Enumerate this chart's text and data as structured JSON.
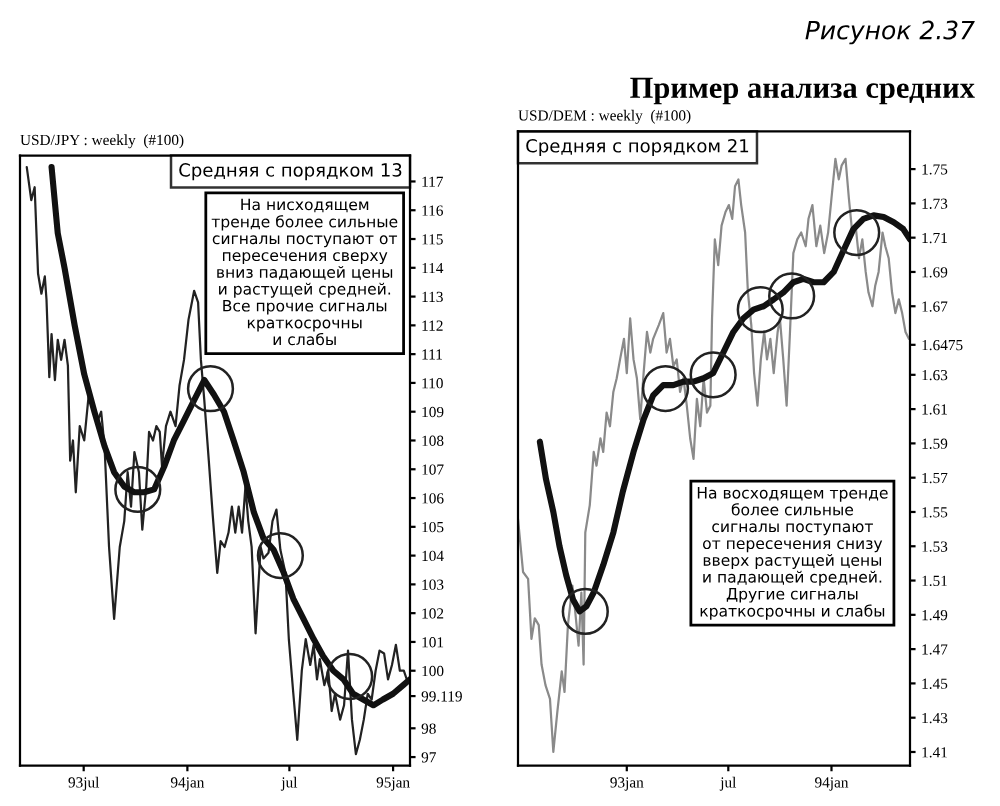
{
  "chart_data": [
    {
      "type": "line",
      "annotations": [
        "USD/JPY : weekly  (#100)",
        "На нисходящем\nтренде более сильные\nсигналы поступают от\nпересечения сверху\nвниз падающей цены\nи растущей средней.\nВсе прочие сигналы\nкраткосрочны\nи слабы"
      ],
      "xlim": [
        "1993-03-10",
        "1995-01-31"
      ],
      "xticks": [
        {
          "value": "1993-07-01",
          "label": "93jul"
        },
        {
          "value": "1994-01-01",
          "label": "94jan"
        },
        {
          "value": "1994-07-01",
          "label": "jul"
        },
        {
          "value": "1995-01-01",
          "label": "95jan"
        }
      ],
      "ylim": [
        96.7,
        117.9
      ],
      "yticks": [
        97,
        98,
        99.119,
        100,
        101,
        102,
        103,
        104,
        105,
        106,
        107,
        108,
        109,
        110,
        111,
        112,
        113,
        114,
        115,
        116,
        117
      ],
      "grid": false,
      "legend": "top right",
      "series": [
        {
          "color": "#222222",
          "line_style": "solid",
          "x": [
            "1993-03-22",
            "1993-03-30",
            "1993-04-05",
            "1993-04-11",
            "1993-04-17",
            "1993-04-23",
            "1993-04-26",
            "1993-05-01",
            "1993-05-05",
            "1993-05-11",
            "1993-05-16",
            "1993-05-22",
            "1993-05-28",
            "1993-06-03",
            "1993-06-07",
            "1993-06-12",
            "1993-06-17",
            "1993-06-24",
            "1993-07-02",
            "1993-07-11",
            "1993-07-18",
            "1993-07-26",
            "1993-08-01",
            "1993-08-07",
            "1993-08-15",
            "1993-08-24",
            "1993-09-03",
            "1993-09-11",
            "1993-09-17",
            "1993-09-23",
            "1993-09-29",
            "1993-10-07",
            "1993-10-13",
            "1993-10-20",
            "1993-10-25",
            "1993-11-01",
            "1993-11-07",
            "1993-11-13",
            "1993-11-17",
            "1993-11-24",
            "1993-12-02",
            "1993-12-11",
            "1993-12-18",
            "1993-12-26",
            "1994-01-03",
            "1994-01-13",
            "1994-01-20",
            "1994-01-25",
            "1994-01-31",
            "1994-02-08",
            "1994-02-15",
            "1994-02-23",
            "1994-03-01",
            "1994-03-08",
            "1994-03-15",
            "1994-03-21",
            "1994-03-27",
            "1994-04-02",
            "1994-04-08",
            "1994-04-14",
            "1994-04-19",
            "1994-04-25",
            "1994-05-02",
            "1994-05-11",
            "1994-05-16",
            "1994-05-25",
            "1994-06-01",
            "1994-06-08",
            "1994-06-15",
            "1994-06-24",
            "1994-06-30",
            "1994-07-08",
            "1994-07-15",
            "1994-07-23",
            "1994-07-30",
            "1994-08-07",
            "1994-08-13",
            "1994-08-19",
            "1994-08-24",
            "1994-09-01",
            "1994-09-08",
            "1994-09-14",
            "1994-09-20",
            "1994-09-29",
            "1994-10-06",
            "1994-10-13",
            "1994-10-20",
            "1994-10-27",
            "1994-11-03",
            "1994-11-10",
            "1994-11-17",
            "1994-11-24",
            "1994-12-01",
            "1994-12-08",
            "1994-12-16",
            "1994-12-23",
            "1994-12-30",
            "1995-01-06",
            "1995-01-13",
            "1995-01-20",
            "1995-01-27"
          ],
          "values": [
            117.5,
            116.35,
            116.8,
            113.8,
            113.1,
            113.7,
            112.9,
            110.2,
            111.7,
            110.1,
            111.5,
            110.8,
            111.5,
            110.6,
            107.3,
            108.0,
            106.2,
            108.5,
            108.0,
            109.8,
            109.2,
            108.7,
            109.0,
            107.8,
            104.3,
            101.8,
            104.3,
            105.2,
            106.9,
            105.7,
            107.6,
            106.9,
            104.9,
            106.4,
            108.3,
            108.0,
            108.5,
            108.3,
            107.1,
            108.5,
            109.0,
            108.5,
            109.9,
            110.8,
            112.2,
            113.2,
            112.8,
            110.8,
            109.4,
            107.3,
            105.4,
            103.4,
            104.5,
            104.3,
            104.8,
            105.7,
            104.8,
            105.7,
            104.8,
            106.4,
            105.2,
            104.3,
            101.3,
            104.3,
            103.9,
            104.1,
            105.2,
            105.6,
            104.2,
            103.4,
            101.1,
            99.2,
            97.6,
            100.0,
            101.1,
            100.2,
            100.9,
            99.7,
            100.4,
            99.5,
            100.0,
            98.6,
            99.2,
            98.3,
            98.8,
            100.7,
            98.3,
            97.1,
            97.6,
            98.3,
            99.2,
            99.0,
            100.0,
            100.7,
            100.6,
            99.7,
            100.2,
            100.9,
            100.0,
            100.0,
            99.6
          ]
        },
        {
          "name": "Средняя с порядком 13",
          "color": "#111111",
          "line_style": "solid",
          "x": [
            "1993-05-05",
            "1993-05-16",
            "1993-05-28",
            "1993-06-15",
            "1993-07-02",
            "1993-07-20",
            "1993-08-07",
            "1993-08-24",
            "1993-09-11",
            "1993-09-29",
            "1993-10-16",
            "1993-11-03",
            "1993-11-21",
            "1993-12-08",
            "1993-12-26",
            "1994-01-13",
            "1994-01-31",
            "1994-02-17",
            "1994-03-07",
            "1994-03-24",
            "1994-04-11",
            "1994-04-29",
            "1994-05-16",
            "1994-06-03",
            "1994-06-21",
            "1994-07-08",
            "1994-07-26",
            "1994-08-13",
            "1994-08-30",
            "1994-09-17",
            "1994-10-05",
            "1994-10-22",
            "1994-11-09",
            "1994-11-27",
            "1994-12-14",
            "1995-01-01",
            "1995-01-19",
            "1995-01-31"
          ],
          "values": [
            117.5,
            115.2,
            114.0,
            112.0,
            110.3,
            109.0,
            107.8,
            106.9,
            106.4,
            106.2,
            106.2,
            106.3,
            107.1,
            108.0,
            108.7,
            109.4,
            110.1,
            109.6,
            109.0,
            108.0,
            106.9,
            105.5,
            104.6,
            104.2,
            103.4,
            102.5,
            101.8,
            101.1,
            100.5,
            100.0,
            99.7,
            99.2,
            99.0,
            98.8,
            99.0,
            99.2,
            99.5,
            99.7
          ]
        },
        {
          "type": "scatter",
          "marker": "circle",
          "color": "#222222",
          "x": [
            "1993-10-05",
            "1994-02-11",
            "1994-06-15",
            "1994-10-16"
          ],
          "values": [
            106.3,
            109.8,
            104.0,
            99.8
          ]
        }
      ]
    },
    {
      "type": "line",
      "title": "Пример анализа средних",
      "subtitle": "Рисунок 2.37",
      "annotations": [
        "USD/DEM : weekly  (#100)",
        "На восходящем тренде\nболее сильные\nсигналы поступают\nот пересечения снизу\nвверх растущей цены\nи падающей средней.\nДругие сигналы\nкраткосрочны и слабы"
      ],
      "xlim": [
        "1992-06-21",
        "1994-05-21"
      ],
      "xticks": [
        {
          "value": "1993-01-01",
          "label": "93jan"
        },
        {
          "value": "1993-07-01",
          "label": "jul"
        },
        {
          "value": "1994-01-01",
          "label": "94jan"
        }
      ],
      "ylim": [
        1.402,
        1.772
      ],
      "yticks": [
        1.41,
        1.43,
        1.45,
        1.47,
        1.49,
        1.51,
        1.53,
        1.55,
        1.57,
        1.59,
        1.61,
        1.63,
        1.6475,
        1.67,
        1.69,
        1.71,
        1.73,
        1.75
      ],
      "grid": false,
      "legend": "top left",
      "series": [
        {
          "color": "#8a8a8a",
          "line_style": "solid",
          "x": [
            "1992-06-21",
            "1992-06-30",
            "1992-07-09",
            "1992-07-15",
            "1992-07-21",
            "1992-07-28",
            "1992-08-02",
            "1992-08-09",
            "1992-08-17",
            "1992-08-23",
            "1992-08-30",
            "1992-09-07",
            "1992-09-12",
            "1992-09-18",
            "1992-09-26",
            "1992-10-01",
            "1992-10-07",
            "1992-10-12",
            "1992-10-16",
            "1992-10-19",
            "1992-10-27",
            "1992-11-03",
            "1992-11-08",
            "1992-11-15",
            "1992-11-20",
            "1992-11-26",
            "1992-12-02",
            "1992-12-08",
            "1992-12-14",
            "1992-12-20",
            "1992-12-27",
            "1993-01-01",
            "1993-01-07",
            "1993-01-13",
            "1993-01-19",
            "1993-01-25",
            "1993-01-31",
            "1993-02-06",
            "1993-02-12",
            "1993-02-17",
            "1993-02-27",
            "1993-03-07",
            "1993-03-13",
            "1993-03-19",
            "1993-03-25",
            "1993-03-31",
            "1993-04-06",
            "1993-04-12",
            "1993-04-18",
            "1993-04-24",
            "1993-04-30",
            "1993-05-06",
            "1993-05-12",
            "1993-05-18",
            "1993-05-24",
            "1993-05-30",
            "1993-06-02",
            "1993-06-07",
            "1993-06-13",
            "1993-06-19",
            "1993-06-26",
            "1993-07-02",
            "1993-07-08",
            "1993-07-13",
            "1993-07-19",
            "1993-07-24",
            "1993-07-31",
            "1993-08-05",
            "1993-08-11",
            "1993-08-16",
            "1993-08-22",
            "1993-08-28",
            "1993-09-03",
            "1993-09-08",
            "1993-09-14",
            "1993-09-20",
            "1993-09-27",
            "1993-10-01",
            "1993-10-07",
            "1993-10-13",
            "1993-10-19",
            "1993-10-25",
            "1993-11-01",
            "1993-11-08",
            "1993-11-16",
            "1993-11-21",
            "1993-11-28",
            "1993-12-05",
            "1993-12-12",
            "1993-12-19",
            "1993-12-26",
            "1994-01-01",
            "1994-01-08",
            "1994-01-14",
            "1994-01-19",
            "1994-01-26",
            "1994-02-01",
            "1994-02-07",
            "1994-02-13",
            "1994-02-19",
            "1994-02-25",
            "1994-03-03",
            "1994-03-08",
            "1994-03-15",
            "1994-03-20",
            "1994-03-26",
            "1994-04-02",
            "1994-04-07",
            "1994-04-13",
            "1994-04-19",
            "1994-04-25",
            "1994-05-01",
            "1994-05-07",
            "1994-05-13",
            "1994-05-19"
          ],
          "values": [
            1.546,
            1.515,
            1.511,
            1.476,
            1.488,
            1.484,
            1.461,
            1.449,
            1.441,
            1.41,
            1.433,
            1.457,
            1.445,
            1.484,
            1.507,
            1.492,
            1.472,
            1.503,
            1.461,
            1.538,
            1.554,
            1.585,
            1.577,
            1.593,
            1.585,
            1.608,
            1.6,
            1.62,
            1.628,
            1.639,
            1.651,
            1.631,
            1.663,
            1.639,
            1.628,
            1.604,
            1.631,
            1.655,
            1.643,
            1.651,
            1.659,
            1.666,
            1.643,
            1.651,
            1.635,
            1.639,
            1.62,
            1.628,
            1.612,
            1.593,
            1.581,
            1.616,
            1.6,
            1.628,
            1.608,
            1.612,
            1.663,
            1.709,
            1.694,
            1.717,
            1.725,
            1.729,
            1.721,
            1.74,
            1.744,
            1.729,
            1.713,
            1.678,
            1.659,
            1.631,
            1.612,
            1.639,
            1.655,
            1.639,
            1.651,
            1.631,
            1.655,
            1.663,
            1.639,
            1.612,
            1.655,
            1.701,
            1.709,
            1.713,
            1.705,
            1.721,
            1.729,
            1.705,
            1.717,
            1.701,
            1.713,
            1.733,
            1.756,
            1.744,
            1.752,
            1.756,
            1.733,
            1.713,
            1.717,
            1.698,
            1.709,
            1.69,
            1.678,
            1.67,
            1.682,
            1.69,
            1.713,
            1.705,
            1.698,
            1.678,
            1.666,
            1.674,
            1.666,
            1.655,
            1.651
          ]
        },
        {
          "name": "Средняя с порядком 21",
          "color": "#111111",
          "line_style": "solid",
          "x": [
            "1992-07-30",
            "1992-08-10",
            "1992-08-23",
            "1992-09-03",
            "1992-09-15",
            "1992-09-27",
            "1992-10-09",
            "1992-10-21",
            "1992-11-03",
            "1992-11-20",
            "1992-12-08",
            "1992-12-25",
            "1993-01-13",
            "1993-01-31",
            "1993-02-17",
            "1993-03-07",
            "1993-03-25",
            "1993-04-12",
            "1993-04-30",
            "1993-05-18",
            "1993-06-04",
            "1993-06-22",
            "1993-07-10",
            "1993-07-28",
            "1993-08-15",
            "1993-09-02",
            "1993-09-20",
            "1993-10-07",
            "1993-10-25",
            "1993-11-12",
            "1993-11-30",
            "1993-12-18",
            "1994-01-05",
            "1994-01-23",
            "1994-02-09",
            "1994-02-27",
            "1994-03-17",
            "1994-04-04",
            "1994-04-22",
            "1994-05-09",
            "1994-05-21"
          ],
          "values": [
            1.591,
            1.569,
            1.55,
            1.53,
            1.513,
            1.499,
            1.492,
            1.495,
            1.503,
            1.519,
            1.538,
            1.562,
            1.585,
            1.604,
            1.618,
            1.624,
            1.624,
            1.626,
            1.626,
            1.628,
            1.631,
            1.643,
            1.655,
            1.663,
            1.668,
            1.67,
            1.674,
            1.678,
            1.684,
            1.686,
            1.684,
            1.684,
            1.69,
            1.703,
            1.715,
            1.721,
            1.723,
            1.722,
            1.719,
            1.715,
            1.709
          ]
        },
        {
          "type": "scatter",
          "marker": "circle",
          "color": "#222222",
          "x": [
            "1992-10-19",
            "1993-03-11",
            "1993-06-04",
            "1993-08-27",
            "1993-10-22",
            "1994-02-15"
          ],
          "values": [
            1.492,
            1.622,
            1.63,
            1.668,
            1.676,
            1.713
          ]
        }
      ]
    }
  ]
}
